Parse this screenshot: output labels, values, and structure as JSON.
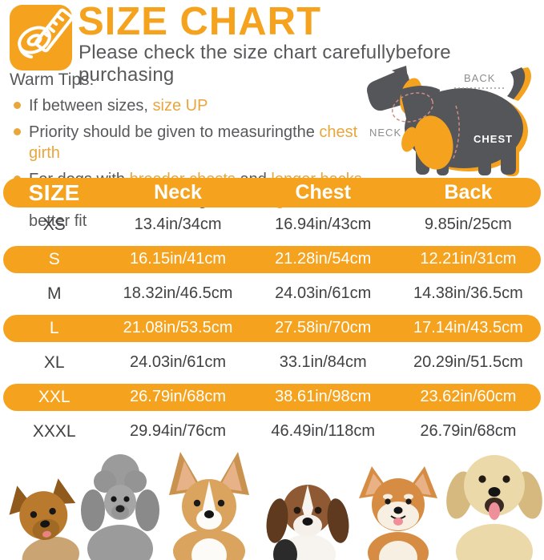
{
  "header": {
    "title": "SIZE CHART",
    "subtitle": "Please check the size chart carefullybefore purchasing",
    "icon": "measuring-tape-icon"
  },
  "tips": {
    "heading": "Warm Tips:",
    "items": [
      [
        {
          "t": "If between sizes, "
        },
        {
          "t": "size UP",
          "hl": true
        }
      ],
      [
        {
          "t": "Priority should be given to measuringthe "
        },
        {
          "t": "chest girth",
          "hl": true
        }
      ],
      [
        {
          "t": "For dogs with "
        },
        {
          "t": "broader chests",
          "hl": true
        },
        {
          "t": " and "
        },
        {
          "t": "longer backs",
          "hl": true
        },
        {
          "t": ", we recommend choosing a "
        },
        {
          "t": "size larger",
          "hl": true
        },
        {
          "t": " for a better fit"
        }
      ]
    ]
  },
  "diagram": {
    "neck_label": "NECK",
    "back_label": "BACK",
    "chest_label": "CHEST"
  },
  "table": {
    "columns": [
      "SIZE",
      "Neck",
      "Chest",
      "Back"
    ],
    "rows": [
      {
        "size": "XS",
        "neck": "13.4in/34cm",
        "chest": "16.94in/43cm",
        "back": "9.85in/25cm",
        "highlight": false
      },
      {
        "size": "S",
        "neck": "16.15in/41cm",
        "chest": "21.28in/54cm",
        "back": "12.21in/31cm",
        "highlight": true
      },
      {
        "size": "M",
        "neck": "18.32in/46.5cm",
        "chest": "24.03in/61cm",
        "back": "14.38in/36.5cm",
        "highlight": false
      },
      {
        "size": "L",
        "neck": "21.08in/53.5cm",
        "chest": "27.58in/70cm",
        "back": "17.14in/43.5cm",
        "highlight": true
      },
      {
        "size": "XL",
        "neck": "24.03in/61cm",
        "chest": "33.1in/84cm",
        "back": "20.29in/51.5cm",
        "highlight": false
      },
      {
        "size": "XXL",
        "neck": "26.79in/68cm",
        "chest": "38.61in/98cm",
        "back": "23.62in/60cm",
        "highlight": true
      },
      {
        "size": "XXXL",
        "neck": "29.94in/76cm",
        "chest": "46.49in/118cm",
        "back": "26.79in/68cm",
        "highlight": false
      }
    ]
  },
  "dogs": [
    "yorkshire-terrier",
    "poodle",
    "corgi",
    "beagle",
    "shiba-inu",
    "golden-retriever"
  ],
  "colors": {
    "accent": "#F5A31E",
    "accent_text": "#E9A63D",
    "text": "#58595B",
    "dark": "#55565A",
    "row_text": "#414042"
  }
}
